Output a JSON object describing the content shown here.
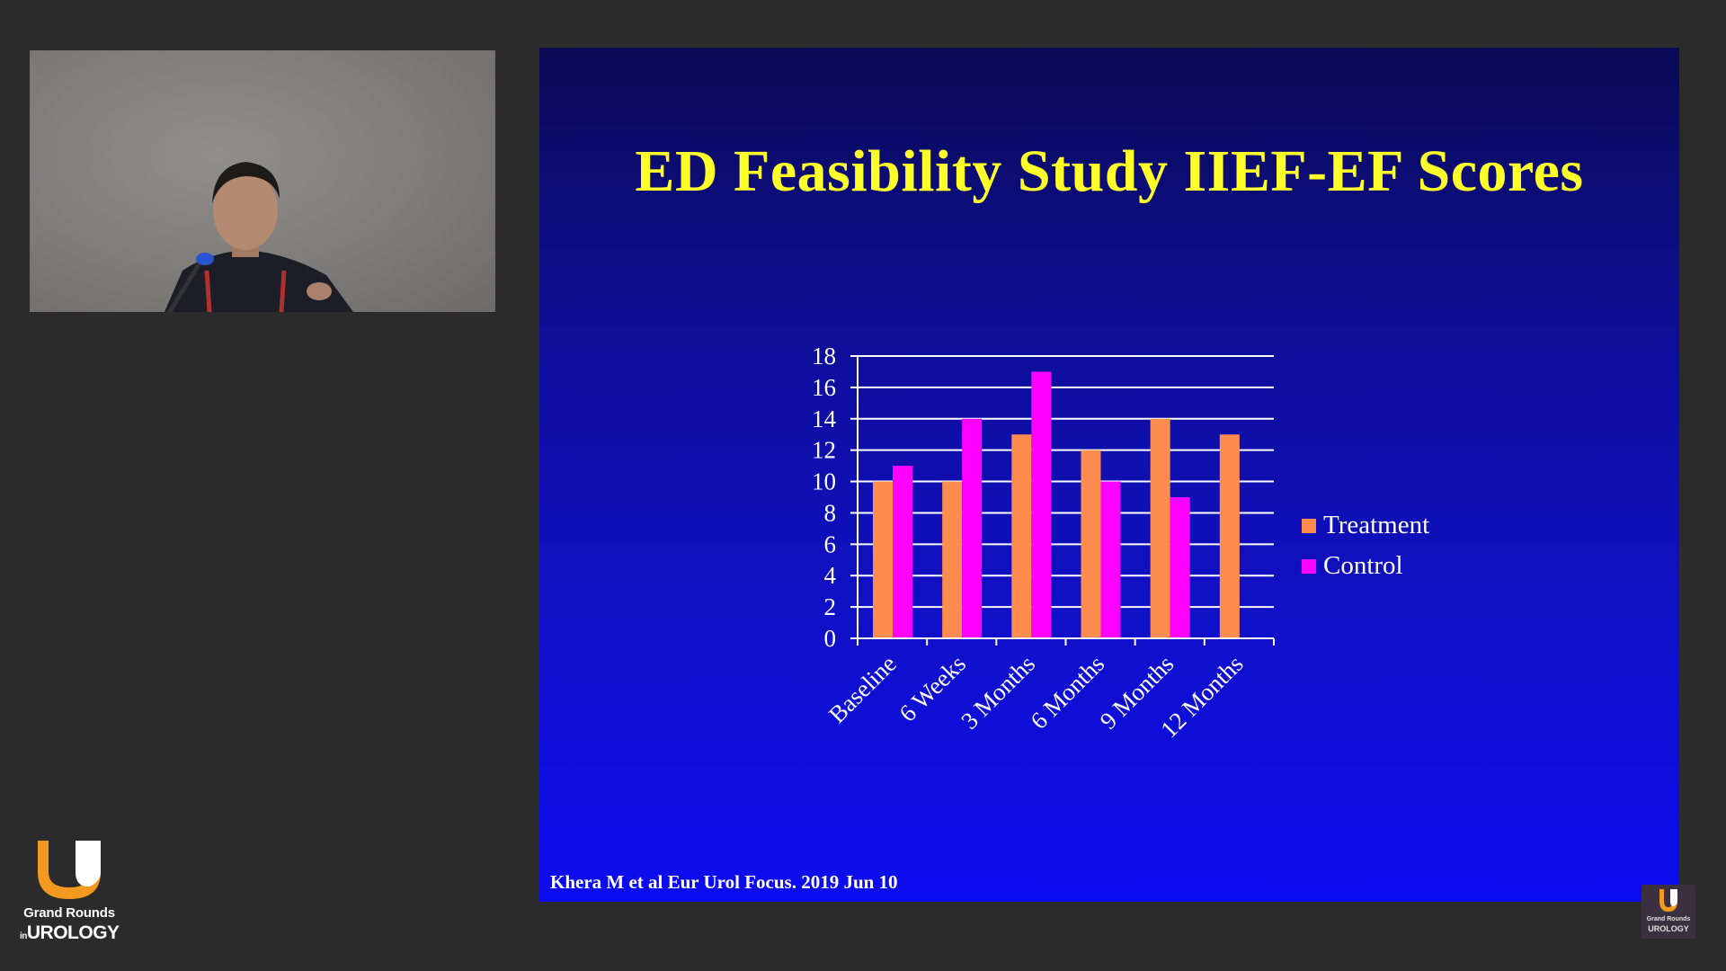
{
  "slide": {
    "title": "ED Feasibility Study IIEF-EF Scores",
    "citation": "Khera M et al Eur Urol Focus. 2019 Jun 10"
  },
  "chart_data": {
    "type": "bar",
    "title": "",
    "xlabel": "",
    "ylabel": "",
    "categories": [
      "Baseline",
      "6 Weeks",
      "3 Months",
      "6 Months",
      "9 Months",
      "12 Months"
    ],
    "series": [
      {
        "name": "Treatment",
        "color": "#ff8c4f",
        "values": [
          10,
          10,
          13,
          12,
          14,
          13
        ]
      },
      {
        "name": "Control",
        "color": "#ff00ff",
        "values": [
          11,
          14,
          17,
          10,
          9,
          null
        ]
      }
    ],
    "ylim": [
      0,
      18
    ],
    "yticks": [
      0,
      2,
      4,
      6,
      8,
      10,
      12,
      14,
      16,
      18
    ],
    "grid": true,
    "legend_position": "right"
  },
  "branding": {
    "line1": "Grand Rounds",
    "line2_prefix": "in",
    "line2": "UROLOGY",
    "corner_line1": "Grand Rounds",
    "corner_line2": "UROLOGY"
  },
  "colors": {
    "title": "#ffff2a",
    "logo_orange": "#f39a1e",
    "logo_white": "#ffffff"
  }
}
